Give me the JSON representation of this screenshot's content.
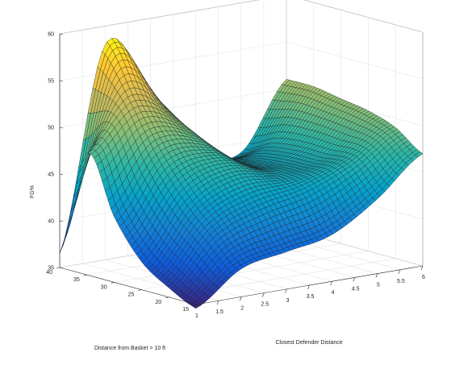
{
  "chart_data": {
    "type": "surface",
    "title": "",
    "xlabel": "Closest Defender Distance",
    "ylabel": "Distance from Basket > 10 ft",
    "zlabel": "FG%",
    "xlim": [
      1,
      6
    ],
    "ylim": [
      15,
      40
    ],
    "zlim": [
      35,
      60
    ],
    "x_ticks": [
      "1",
      "1.5",
      "2",
      "2.5",
      "3",
      "3.5",
      "4",
      "4.5",
      "5",
      "5.5",
      "6"
    ],
    "y_ticks": [
      "15",
      "20",
      "25",
      "30",
      "35",
      "40"
    ],
    "z_ticks": [
      "35",
      "40",
      "45",
      "50",
      "55",
      "60"
    ],
    "grid": true,
    "colormap": "parula",
    "x": [
      1,
      2,
      3,
      4,
      5,
      6
    ],
    "y": [
      15,
      20,
      25,
      30,
      35,
      40
    ],
    "z": [
      [
        34.6,
        38.0,
        39.0,
        40.0,
        43.0,
        47.0
      ],
      [
        36.0,
        41.0,
        43.0,
        44.0,
        46.0,
        49.0
      ],
      [
        38.0,
        44.0,
        46.0,
        45.0,
        46.0,
        50.0
      ],
      [
        42.0,
        48.0,
        48.0,
        45.0,
        46.0,
        50.5
      ],
      [
        48.0,
        53.0,
        50.0,
        45.0,
        45.5,
        51.0
      ],
      [
        36.5,
        58.0,
        52.0,
        45.0,
        44.0,
        51.0
      ]
    ]
  }
}
